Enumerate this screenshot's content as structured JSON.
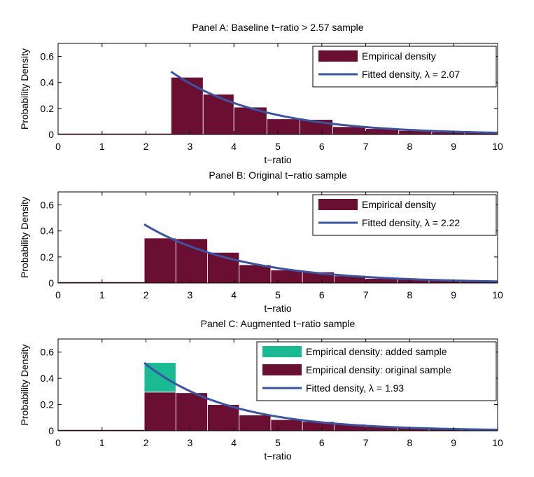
{
  "chart_data": [
    {
      "type": "bar",
      "title": "Panel A: Baseline t−ratio > 2.57 sample",
      "xlabel": "t−ratio",
      "ylabel": "Probability Density",
      "xlim": [
        0,
        10
      ],
      "ylim": [
        0,
        0.7
      ],
      "xticks": [
        "0",
        "1",
        "2",
        "3",
        "4",
        "5",
        "6",
        "7",
        "8",
        "9",
        "10"
      ],
      "yticks": [
        "0",
        "0.2",
        "0.4",
        "0.6"
      ],
      "bin_edges": [
        2.57,
        3.3,
        4.0,
        4.75,
        5.5,
        6.25,
        7.0,
        7.75,
        8.5,
        9.25,
        10.0
      ],
      "series": [
        {
          "name": "Empirical density",
          "color": "#6b0f32",
          "values": [
            0.44,
            0.31,
            0.21,
            0.12,
            0.115,
            0.06,
            0.045,
            0.03,
            0.02,
            0.015
          ]
        }
      ],
      "fit": {
        "name": "Fitted density, λ = 2.07",
        "color": "#3a54a4",
        "lambda": 2.07,
        "x_start": 2.57,
        "x_end": 10
      },
      "legend_position": "top-right"
    },
    {
      "type": "bar",
      "title": "Panel B: Original t−ratio sample",
      "xlabel": "t−ratio",
      "ylabel": "Probability Density",
      "xlim": [
        0,
        10
      ],
      "ylim": [
        0,
        0.7
      ],
      "xticks": [
        "0",
        "1",
        "2",
        "3",
        "4",
        "5",
        "6",
        "7",
        "8",
        "9",
        "10"
      ],
      "yticks": [
        "0",
        "0.2",
        "0.4",
        "0.6"
      ],
      "bin_edges": [
        1.96,
        2.68,
        3.4,
        4.12,
        4.84,
        5.56,
        6.28,
        7.0,
        7.72,
        8.44,
        9.16,
        10.0
      ],
      "series": [
        {
          "name": "Empirical density",
          "color": "#6b0f32",
          "values": [
            0.345,
            0.34,
            0.235,
            0.14,
            0.1,
            0.085,
            0.055,
            0.035,
            0.03,
            0.02,
            0.015
          ]
        }
      ],
      "fit": {
        "name": "Fitted density, λ = 2.22",
        "color": "#3a54a4",
        "lambda": 2.22,
        "x_start": 1.96,
        "x_end": 10
      },
      "legend_position": "top-right"
    },
    {
      "type": "bar",
      "title": "Panel C: Augmented t−ratio sample",
      "xlabel": "t−ratio",
      "ylabel": "Probability Density",
      "xlim": [
        0,
        10
      ],
      "ylim": [
        0,
        0.7
      ],
      "xticks": [
        "0",
        "1",
        "2",
        "3",
        "4",
        "5",
        "6",
        "7",
        "8",
        "9",
        "10"
      ],
      "yticks": [
        "0",
        "0.2",
        "0.4",
        "0.6"
      ],
      "bin_edges": [
        1.96,
        2.68,
        3.4,
        4.12,
        4.84,
        5.56,
        6.28,
        7.0,
        7.72,
        8.44,
        9.16,
        10.0
      ],
      "series": [
        {
          "name": "Empirical density: added sample",
          "color": "#1aba94",
          "values": [
            0.225,
            0,
            0,
            0,
            0,
            0,
            0,
            0,
            0,
            0,
            0
          ]
        },
        {
          "name": "Empirical density: original sample",
          "color": "#6b0f32",
          "values": [
            0.295,
            0.29,
            0.2,
            0.12,
            0.085,
            0.07,
            0.05,
            0.035,
            0.025,
            0.018,
            0.012
          ]
        }
      ],
      "stacked": true,
      "fit": {
        "name": "Fitted density, λ = 1.93",
        "color": "#3a54a4",
        "lambda": 1.93,
        "x_start": 1.96,
        "x_end": 10
      },
      "legend_position": "top-right"
    }
  ]
}
